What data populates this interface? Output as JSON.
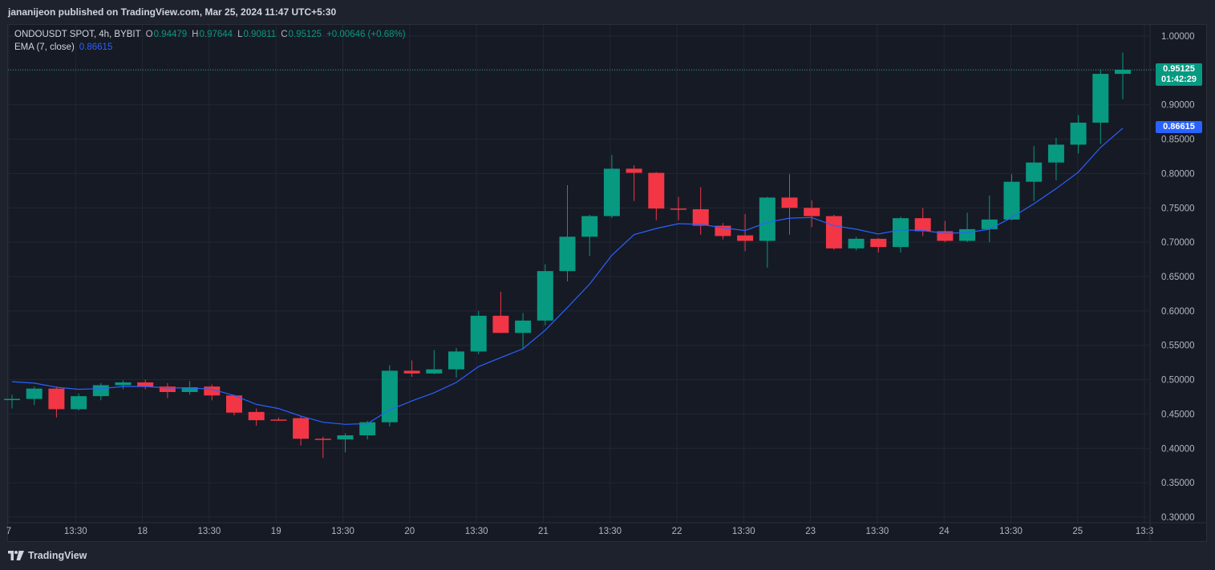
{
  "header": {
    "published_text": "jananijeon published on TradingView.com, Mar 25, 2024 11:47 UTC+5:30"
  },
  "legend": {
    "symbol": "ONDOUSDT SPOT, 4h, BYBIT",
    "open_label": "O",
    "open": "0.94479",
    "high_label": "H",
    "high": "0.97644",
    "low_label": "L",
    "low": "0.90811",
    "close_label": "C",
    "close": "0.95125",
    "change": "+0.00646 (+0.68%)",
    "ema_label": "EMA (7, close)",
    "ema_value": "0.86615"
  },
  "price_tags": {
    "last_price": "0.95125",
    "countdown": "01:42:29",
    "ema_price": "0.86615"
  },
  "footer": {
    "brand": "TradingView"
  },
  "colors": {
    "up": "#089981",
    "down": "#f23645",
    "ema": "#2962ff",
    "background": "#161a25",
    "grid": "#232734"
  },
  "chart_data": {
    "type": "candlestick",
    "title": "ONDOUSDT SPOT, 4h, BYBIT",
    "y_range": [
      0.3,
      1.0
    ],
    "y_ticks": [
      "1.00000",
      "0.95000",
      "0.90000",
      "0.85000",
      "0.80000",
      "0.75000",
      "0.70000",
      "0.65000",
      "0.60000",
      "0.55000",
      "0.50000",
      "0.45000",
      "0.40000",
      "0.35000",
      "0.30000"
    ],
    "x_ticks": [
      "7",
      "13:30",
      "18",
      "13:30",
      "19",
      "13:30",
      "20",
      "13:30",
      "21",
      "13:30",
      "22",
      "13:30",
      "23",
      "13:30",
      "24",
      "13:30",
      "25",
      "13:3"
    ],
    "candles": [
      {
        "o": 0.472,
        "h": 0.478,
        "l": 0.458,
        "c": 0.472
      },
      {
        "o": 0.472,
        "h": 0.49,
        "l": 0.463,
        "c": 0.487
      },
      {
        "o": 0.487,
        "h": 0.49,
        "l": 0.445,
        "c": 0.457
      },
      {
        "o": 0.457,
        "h": 0.48,
        "l": 0.455,
        "c": 0.476
      },
      {
        "o": 0.476,
        "h": 0.495,
        "l": 0.47,
        "c": 0.492
      },
      {
        "o": 0.492,
        "h": 0.499,
        "l": 0.486,
        "c": 0.496
      },
      {
        "o": 0.496,
        "h": 0.5,
        "l": 0.486,
        "c": 0.49
      },
      {
        "o": 0.49,
        "h": 0.495,
        "l": 0.473,
        "c": 0.482
      },
      {
        "o": 0.482,
        "h": 0.498,
        "l": 0.478,
        "c": 0.489
      },
      {
        "o": 0.49,
        "h": 0.493,
        "l": 0.47,
        "c": 0.477
      },
      {
        "o": 0.477,
        "h": 0.478,
        "l": 0.448,
        "c": 0.452
      },
      {
        "o": 0.453,
        "h": 0.458,
        "l": 0.433,
        "c": 0.441
      },
      {
        "o": 0.442,
        "h": 0.445,
        "l": 0.44,
        "c": 0.441
      },
      {
        "o": 0.444,
        "h": 0.447,
        "l": 0.404,
        "c": 0.414
      },
      {
        "o": 0.414,
        "h": 0.417,
        "l": 0.386,
        "c": 0.413
      },
      {
        "o": 0.413,
        "h": 0.422,
        "l": 0.394,
        "c": 0.419
      },
      {
        "o": 0.419,
        "h": 0.44,
        "l": 0.413,
        "c": 0.438
      },
      {
        "o": 0.438,
        "h": 0.521,
        "l": 0.432,
        "c": 0.513
      },
      {
        "o": 0.513,
        "h": 0.528,
        "l": 0.504,
        "c": 0.509
      },
      {
        "o": 0.509,
        "h": 0.543,
        "l": 0.508,
        "c": 0.515
      },
      {
        "o": 0.515,
        "h": 0.546,
        "l": 0.503,
        "c": 0.541
      },
      {
        "o": 0.541,
        "h": 0.6,
        "l": 0.537,
        "c": 0.593
      },
      {
        "o": 0.593,
        "h": 0.628,
        "l": 0.568,
        "c": 0.568
      },
      {
        "o": 0.568,
        "h": 0.597,
        "l": 0.544,
        "c": 0.586
      },
      {
        "o": 0.586,
        "h": 0.668,
        "l": 0.579,
        "c": 0.658
      },
      {
        "o": 0.658,
        "h": 0.783,
        "l": 0.643,
        "c": 0.708
      },
      {
        "o": 0.708,
        "h": 0.74,
        "l": 0.68,
        "c": 0.738
      },
      {
        "o": 0.738,
        "h": 0.827,
        "l": 0.735,
        "c": 0.807
      },
      {
        "o": 0.807,
        "h": 0.812,
        "l": 0.76,
        "c": 0.801
      },
      {
        "o": 0.801,
        "h": 0.802,
        "l": 0.732,
        "c": 0.749
      },
      {
        "o": 0.749,
        "h": 0.766,
        "l": 0.732,
        "c": 0.748
      },
      {
        "o": 0.748,
        "h": 0.78,
        "l": 0.711,
        "c": 0.724
      },
      {
        "o": 0.724,
        "h": 0.728,
        "l": 0.704,
        "c": 0.709
      },
      {
        "o": 0.71,
        "h": 0.741,
        "l": 0.687,
        "c": 0.702
      },
      {
        "o": 0.702,
        "h": 0.766,
        "l": 0.663,
        "c": 0.765
      },
      {
        "o": 0.765,
        "h": 0.799,
        "l": 0.711,
        "c": 0.75
      },
      {
        "o": 0.75,
        "h": 0.761,
        "l": 0.722,
        "c": 0.738
      },
      {
        "o": 0.738,
        "h": 0.74,
        "l": 0.689,
        "c": 0.691
      },
      {
        "o": 0.691,
        "h": 0.708,
        "l": 0.688,
        "c": 0.705
      },
      {
        "o": 0.705,
        "h": 0.706,
        "l": 0.685,
        "c": 0.693
      },
      {
        "o": 0.693,
        "h": 0.737,
        "l": 0.685,
        "c": 0.735
      },
      {
        "o": 0.735,
        "h": 0.75,
        "l": 0.709,
        "c": 0.716
      },
      {
        "o": 0.716,
        "h": 0.731,
        "l": 0.7,
        "c": 0.702
      },
      {
        "o": 0.702,
        "h": 0.743,
        "l": 0.7,
        "c": 0.719
      },
      {
        "o": 0.719,
        "h": 0.768,
        "l": 0.7,
        "c": 0.733
      },
      {
        "o": 0.733,
        "h": 0.799,
        "l": 0.732,
        "c": 0.788
      },
      {
        "o": 0.788,
        "h": 0.84,
        "l": 0.76,
        "c": 0.816
      },
      {
        "o": 0.816,
        "h": 0.852,
        "l": 0.79,
        "c": 0.842
      },
      {
        "o": 0.842,
        "h": 0.885,
        "l": 0.829,
        "c": 0.874
      },
      {
        "o": 0.874,
        "h": 0.952,
        "l": 0.843,
        "c": 0.945
      },
      {
        "o": 0.945,
        "h": 0.976,
        "l": 0.908,
        "c": 0.951
      }
    ],
    "ema": [
      0.497,
      0.495,
      0.489,
      0.486,
      0.487,
      0.49,
      0.49,
      0.488,
      0.488,
      0.486,
      0.477,
      0.464,
      0.458,
      0.447,
      0.438,
      0.435,
      0.436,
      0.456,
      0.469,
      0.481,
      0.496,
      0.519,
      0.532,
      0.545,
      0.572,
      0.605,
      0.639,
      0.681,
      0.711,
      0.72,
      0.727,
      0.726,
      0.721,
      0.717,
      0.729,
      0.735,
      0.736,
      0.724,
      0.719,
      0.712,
      0.718,
      0.717,
      0.713,
      0.714,
      0.719,
      0.736,
      0.756,
      0.778,
      0.802,
      0.838,
      0.866
    ]
  }
}
